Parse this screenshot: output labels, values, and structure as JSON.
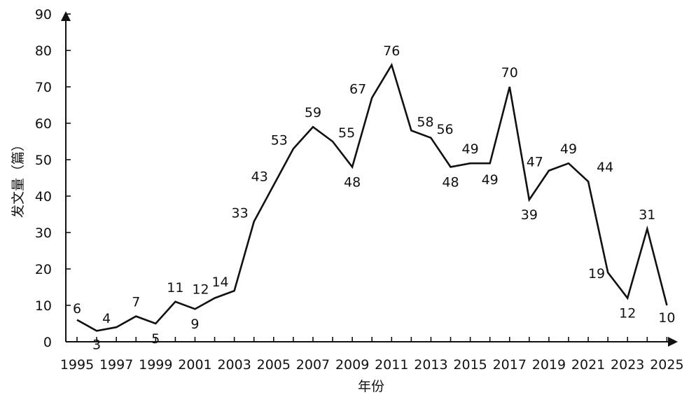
{
  "chart_data": {
    "type": "line",
    "title": "",
    "xlabel": "年份",
    "ylabel": "发文量（篇）",
    "ylim": [
      0,
      90
    ],
    "yticks": [
      0,
      10,
      20,
      30,
      40,
      50,
      60,
      70,
      80,
      90
    ],
    "x_tick_labels": [
      "1995",
      "1997",
      "1999",
      "2001",
      "2003",
      "2005",
      "2007",
      "2009",
      "2011",
      "2013",
      "2015",
      "2017",
      "2019",
      "2021",
      "2023",
      "2025"
    ],
    "grid": false,
    "line_color": "#111111",
    "x": [
      1995,
      1996,
      1997,
      1998,
      1999,
      2000,
      2001,
      2002,
      2003,
      2004,
      2005,
      2006,
      2007,
      2008,
      2009,
      2010,
      2011,
      2012,
      2013,
      2014,
      2015,
      2016,
      2017,
      2018,
      2019,
      2020,
      2021,
      2022,
      2023,
      2024,
      2025
    ],
    "values": [
      6,
      3,
      4,
      7,
      5,
      11,
      9,
      12,
      14,
      33,
      43,
      53,
      59,
      55,
      48,
      67,
      76,
      58,
      56,
      48,
      49,
      49,
      70,
      39,
      47,
      49,
      44,
      19,
      12,
      31,
      10
    ]
  }
}
